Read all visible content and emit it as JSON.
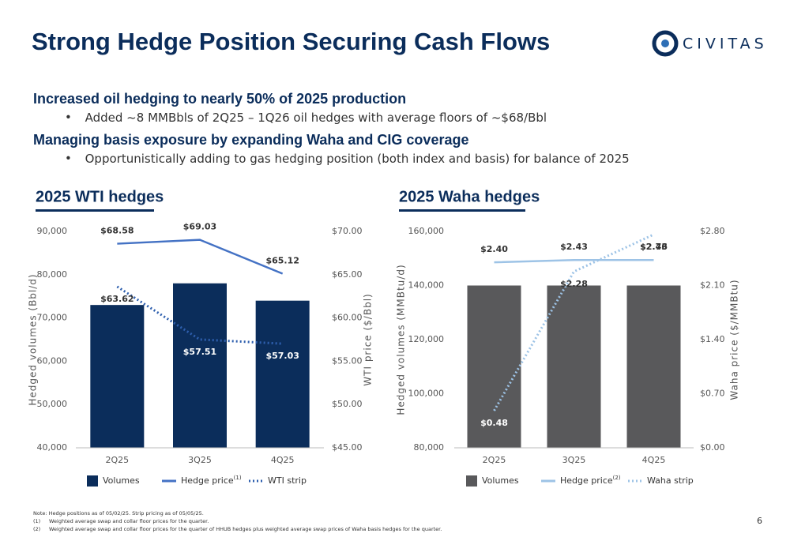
{
  "header": {
    "title": "Strong Hedge Position Securing Cash Flows",
    "logo": "CIVITAS"
  },
  "bullets": [
    {
      "heading": "Increased oil hedging to nearly 50% of 2025 production",
      "item": "Added ~8 MMBbls of 2Q25 – 1Q26 oil hedges with average floors of ~$68/Bbl"
    },
    {
      "heading": "Managing basis exposure by expanding Waha and CIG coverage",
      "item": "Opportunistically adding to gas hedging position (both index and basis) for balance of 2025"
    }
  ],
  "chart_data": [
    {
      "type": "combo",
      "title": "2025 WTI hedges",
      "categories": [
        "2Q25",
        "3Q25",
        "4Q25"
      ],
      "y_label": "Hedged volumes (Bbl/d)",
      "y2_label": "WTI price ($/Bbl)",
      "ylim": [
        40000,
        90000
      ],
      "yticks": [
        {
          "value": 40000,
          "label": "40,000"
        },
        {
          "value": 50000,
          "label": "50,000"
        },
        {
          "value": 60000,
          "label": "60,000"
        },
        {
          "value": 70000,
          "label": "70,000"
        },
        {
          "value": 80000,
          "label": "80,000"
        },
        {
          "value": 90000,
          "label": "90,000"
        }
      ],
      "y2lim": [
        45,
        70
      ],
      "y2ticks": [
        {
          "value": 45,
          "label": "$45.00"
        },
        {
          "value": 50,
          "label": "$50.00"
        },
        {
          "value": 55,
          "label": "$55.00"
        },
        {
          "value": 60,
          "label": "$60.00"
        },
        {
          "value": 65,
          "label": "$65.00"
        },
        {
          "value": 70,
          "label": "$70.00"
        }
      ],
      "series": [
        {
          "name": "Volumes",
          "type": "bar",
          "color": "#0b2d5b",
          "values": [
            73000,
            78000,
            74000
          ]
        },
        {
          "name": "Hedge price",
          "note": "(1)",
          "type": "line",
          "style": "solid",
          "axis": "y2",
          "color": "#4472c4",
          "values": [
            68.58,
            69.03,
            65.12
          ],
          "value_labels": [
            "$68.58",
            "$69.03",
            "$65.12"
          ]
        },
        {
          "name": "WTI strip",
          "type": "line",
          "style": "dotted",
          "axis": "y2",
          "color": "#2e5fae",
          "values": [
            63.62,
            57.51,
            57.03
          ],
          "value_labels": [
            "$63.62",
            "$57.51",
            "$57.03"
          ]
        }
      ]
    },
    {
      "type": "combo",
      "title": "2025 Waha hedges",
      "categories": [
        "2Q25",
        "3Q25",
        "4Q25"
      ],
      "y_label": "Hedged volumes (MMBtu/d)",
      "y2_label": "Waha price ($/MMBtu)",
      "ylim": [
        80000,
        160000
      ],
      "yticks": [
        {
          "value": 80000,
          "label": "80,000"
        },
        {
          "value": 100000,
          "label": "100,000"
        },
        {
          "value": 120000,
          "label": "120,000"
        },
        {
          "value": 140000,
          "label": "140,000"
        },
        {
          "value": 160000,
          "label": "160,000"
        }
      ],
      "y2lim": [
        0,
        2.8
      ],
      "y2ticks": [
        {
          "value": 0,
          "label": "$0.00"
        },
        {
          "value": 0.7,
          "label": "$0.70"
        },
        {
          "value": 1.4,
          "label": "$1.40"
        },
        {
          "value": 2.1,
          "label": "$2.10"
        },
        {
          "value": 2.8,
          "label": "$2.80"
        }
      ],
      "series": [
        {
          "name": "Volumes",
          "type": "bar",
          "color": "#59595b",
          "values": [
            140000,
            140000,
            140000
          ]
        },
        {
          "name": "Hedge price",
          "note": "(2)",
          "type": "line",
          "style": "solid",
          "axis": "y2",
          "color": "#9dc3e6",
          "values": [
            2.4,
            2.43,
            2.43
          ],
          "value_labels": [
            "$2.40",
            "$2.43",
            "$2.43"
          ]
        },
        {
          "name": "Waha strip",
          "type": "line",
          "style": "dotted",
          "axis": "y2",
          "color": "#9dc3e6",
          "values": [
            0.48,
            2.28,
            2.76
          ],
          "value_labels": [
            "$0.48",
            "$2.28",
            "$2.76"
          ]
        }
      ]
    }
  ],
  "notes": [
    {
      "mark": "Note:",
      "text": "Hedge positions as of 05/02/25. Strip pricing as of 05/05/25."
    },
    {
      "mark": "(1)",
      "text": "Weighted average swap and collar floor prices for the quarter."
    },
    {
      "mark": "(2)",
      "text": "Weighted average swap and collar floor prices for the quarter of HHUB hedges plus weighted average swap prices of Waha basis hedges for the quarter."
    }
  ],
  "page_number": "6"
}
